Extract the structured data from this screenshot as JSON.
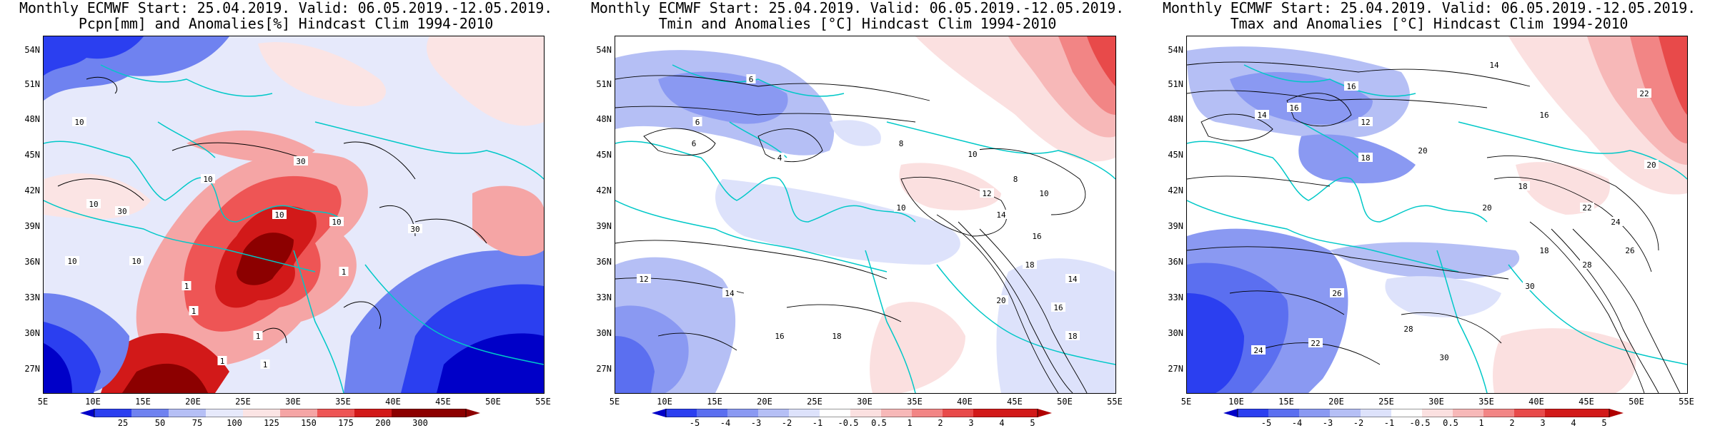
{
  "panels": [
    {
      "title_line1": "Monthly ECMWF Start: 25.04.2019. Valid: 06.05.2019.-12.05.2019.",
      "title_line2": "Pcpn[mm] and Anomalies[%] Hindcast Clim 1994-2010",
      "lat_labels": [
        "54N",
        "51N",
        "48N",
        "45N",
        "42N",
        "39N",
        "36N",
        "33N",
        "30N",
        "27N"
      ],
      "lon_labels": [
        "5E",
        "10E",
        "15E",
        "20E",
        "25E",
        "30E",
        "35E",
        "40E",
        "45E",
        "50E",
        "55E"
      ],
      "colorbar": {
        "labels": [
          "25",
          "50",
          "75",
          "100",
          "125",
          "150",
          "175",
          "200",
          "300"
        ],
        "colors": [
          "#0000c8",
          "#2b3ff0",
          "#6f82f0",
          "#b5bff5",
          "#e6e9fb",
          "#fbe4e4",
          "#f5a5a5",
          "#ee5555",
          "#d21919",
          "#8c0000"
        ]
      },
      "contour_labels": [
        "10",
        "10",
        "10",
        "30",
        "30",
        "10",
        "10",
        "10",
        "1",
        "1",
        "1",
        "1",
        "1",
        "1",
        "10",
        "30"
      ]
    },
    {
      "title_line1": "Monthly ECMWF Start: 25.04.2019. Valid: 06.05.2019.-12.05.2019.",
      "title_line2": "Tmin and Anomalies [°C] Hindcast Clim 1994-2010",
      "lat_labels": [
        "54N",
        "51N",
        "48N",
        "45N",
        "42N",
        "39N",
        "36N",
        "33N",
        "30N",
        "27N"
      ],
      "lon_labels": [
        "5E",
        "10E",
        "15E",
        "20E",
        "25E",
        "30E",
        "35E",
        "40E",
        "45E",
        "50E",
        "55E"
      ],
      "colorbar": {
        "labels": [
          "-5",
          "-4",
          "-3",
          "-2",
          "-1",
          "-0.5",
          "0.5",
          "1",
          "2",
          "3",
          "4",
          "5"
        ],
        "colors": [
          "#0000c8",
          "#2b3ff0",
          "#5b6ff0",
          "#8a99f2",
          "#b5bff5",
          "#dde2fb",
          "#ffffff",
          "#fbe0e0",
          "#f7b8b8",
          "#f28585",
          "#e84a4a",
          "#d21919",
          "#b00000"
        ]
      },
      "contour_labels": [
        "6",
        "6",
        "8",
        "10",
        "10",
        "12",
        "14",
        "16",
        "18",
        "14",
        "12",
        "16",
        "18",
        "20",
        "14",
        "16",
        "18",
        "10",
        "8",
        "6",
        "4"
      ]
    },
    {
      "title_line1": "Monthly ECMWF Start: 25.04.2019. Valid: 06.05.2019.-12.05.2019.",
      "title_line2": "Tmax and Anomalies [°C] Hindcast Clim 1994-2010",
      "lat_labels": [
        "54N",
        "51N",
        "48N",
        "45N",
        "42N",
        "39N",
        "36N",
        "33N",
        "30N",
        "27N"
      ],
      "lon_labels": [
        "5E",
        "10E",
        "15E",
        "20E",
        "25E",
        "30E",
        "35E",
        "40E",
        "45E",
        "50E",
        "55E"
      ],
      "colorbar": {
        "labels": [
          "-5",
          "-4",
          "-3",
          "-2",
          "-1",
          "-0.5",
          "0.5",
          "1",
          "2",
          "3",
          "4",
          "5"
        ],
        "colors": [
          "#0000c8",
          "#2b3ff0",
          "#5b6ff0",
          "#8a99f2",
          "#b5bff5",
          "#dde2fb",
          "#ffffff",
          "#fbe0e0",
          "#f7b8b8",
          "#f28585",
          "#e84a4a",
          "#d21919",
          "#b00000"
        ]
      },
      "contour_labels": [
        "14",
        "16",
        "20",
        "22",
        "14",
        "18",
        "20",
        "16",
        "12",
        "18",
        "22",
        "24",
        "26",
        "28",
        "30",
        "28",
        "30",
        "26",
        "24",
        "22",
        "20",
        "18",
        "16"
      ]
    }
  ],
  "map_extent": {
    "lon": [
      5,
      55
    ],
    "lat": [
      25,
      55
    ]
  },
  "colors": {
    "coast": "#00c8c8",
    "contour": "#000000",
    "frame": "#000000"
  }
}
